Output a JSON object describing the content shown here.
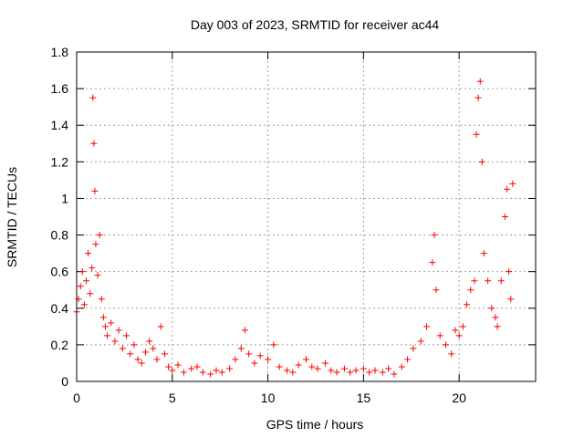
{
  "chart_data": {
    "type": "scatter",
    "title": "Day 003 of 2023, SRMTID for receiver ac44",
    "xlabel": "GPS time / hours",
    "ylabel": "SRMTID / TECUs",
    "xlim": [
      0,
      24
    ],
    "ylim": [
      0,
      1.8
    ],
    "xticks": [
      0,
      5,
      10,
      15,
      20
    ],
    "xtick_labels": [
      "0",
      "5",
      "10",
      "15",
      "20"
    ],
    "yticks": [
      0,
      0.2,
      0.4,
      0.6,
      0.8,
      1.0,
      1.2,
      1.4,
      1.6,
      1.8
    ],
    "ytick_labels": [
      "0",
      "0.2",
      "0.4",
      "0.6",
      "0.8",
      "1",
      "1.2",
      "1.4",
      "1.6",
      "1.8"
    ],
    "grid": true,
    "marker": "+",
    "color": "#ff0000",
    "series": [
      {
        "name": "SRMTID",
        "x": [
          0.0,
          0.1,
          0.2,
          0.3,
          0.4,
          0.5,
          0.6,
          0.7,
          0.8,
          0.85,
          0.9,
          0.95,
          1.0,
          1.1,
          1.2,
          1.3,
          1.4,
          1.5,
          1.6,
          1.8,
          2.0,
          2.2,
          2.4,
          2.6,
          2.8,
          3.0,
          3.2,
          3.4,
          3.6,
          3.8,
          4.0,
          4.2,
          4.4,
          4.6,
          4.8,
          5.0,
          5.3,
          5.6,
          6.0,
          6.3,
          6.6,
          7.0,
          7.3,
          7.6,
          8.0,
          8.3,
          8.6,
          8.8,
          9.0,
          9.3,
          9.6,
          10.0,
          10.3,
          10.6,
          11.0,
          11.3,
          11.6,
          12.0,
          12.3,
          12.6,
          13.0,
          13.3,
          13.6,
          14.0,
          14.3,
          14.6,
          15.0,
          15.3,
          15.6,
          16.0,
          16.3,
          16.6,
          17.0,
          17.3,
          17.6,
          18.0,
          18.3,
          18.6,
          18.7,
          18.8,
          19.0,
          19.3,
          19.6,
          19.8,
          20.0,
          20.2,
          20.4,
          20.6,
          20.8,
          20.9,
          21.0,
          21.1,
          21.2,
          21.3,
          21.5,
          21.7,
          21.9,
          22.0,
          22.2,
          22.4,
          22.5,
          22.6,
          22.7,
          22.8
        ],
        "y": [
          0.38,
          0.45,
          0.52,
          0.6,
          0.42,
          0.55,
          0.7,
          0.48,
          0.62,
          1.55,
          1.3,
          1.04,
          0.75,
          0.58,
          0.8,
          0.45,
          0.35,
          0.3,
          0.25,
          0.32,
          0.22,
          0.28,
          0.18,
          0.25,
          0.15,
          0.2,
          0.12,
          0.1,
          0.16,
          0.22,
          0.18,
          0.12,
          0.3,
          0.15,
          0.08,
          0.06,
          0.09,
          0.05,
          0.07,
          0.08,
          0.05,
          0.04,
          0.06,
          0.05,
          0.07,
          0.12,
          0.18,
          0.28,
          0.15,
          0.1,
          0.14,
          0.12,
          0.2,
          0.08,
          0.06,
          0.05,
          0.09,
          0.12,
          0.08,
          0.07,
          0.1,
          0.06,
          0.05,
          0.07,
          0.05,
          0.06,
          0.07,
          0.05,
          0.06,
          0.05,
          0.07,
          0.04,
          0.08,
          0.12,
          0.18,
          0.22,
          0.3,
          0.65,
          0.8,
          0.5,
          0.25,
          0.2,
          0.15,
          0.28,
          0.25,
          0.3,
          0.42,
          0.5,
          0.55,
          1.35,
          1.55,
          1.64,
          1.2,
          0.7,
          0.55,
          0.4,
          0.35,
          0.3,
          0.55,
          0.9,
          1.05,
          0.6,
          0.45,
          1.08
        ]
      }
    ]
  }
}
